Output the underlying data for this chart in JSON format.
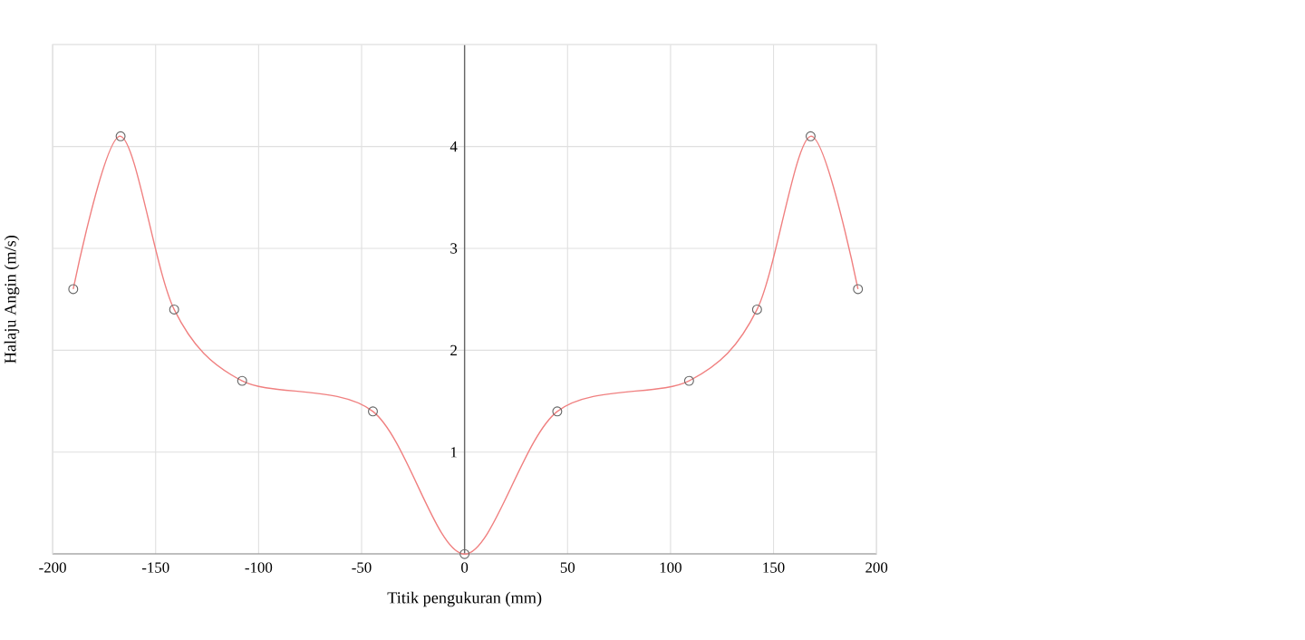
{
  "chart_data": {
    "type": "line",
    "xlabel": "Titik pengukuran (mm)",
    "ylabel": "Halaju Angin (m/s)",
    "xlim": [
      -200,
      200
    ],
    "xticks": [
      -200,
      -150,
      -100,
      -50,
      0,
      50,
      100,
      150,
      200
    ],
    "ylim": [
      0,
      5
    ],
    "yticks": [
      1,
      2,
      3,
      4
    ],
    "grid": true,
    "marker": "circle",
    "line_style": "solid",
    "series": [
      {
        "color": "#f08080",
        "x": [
          -190,
          -167,
          -141,
          -108,
          -44.5,
          0,
          45,
          109,
          142,
          168,
          191
        ],
        "values": [
          2.6,
          4.1,
          2.4,
          1.7,
          1.4,
          0,
          1.4,
          1.7,
          2.4,
          4.1,
          2.6
        ]
      }
    ]
  }
}
